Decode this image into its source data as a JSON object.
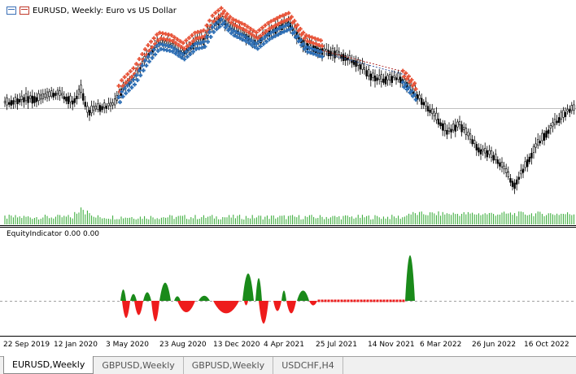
{
  "chart": {
    "symbol_title": "EURUSD, Weekly:  Euro vs US Dollar",
    "indicator_label": "EquityIndicator 0.00 0.00",
    "x_labels": [
      "22 Sep 2019",
      "12 Jan 2020",
      "3 May 2020",
      "23 Aug 2020",
      "13 Dec 2020",
      "4 Apr 2021",
      "25 Jul 2021",
      "14 Nov 2021",
      "6 Mar 2022",
      "26 Jun 2022",
      "16 Oct 2022"
    ],
    "colors": {
      "bull_marker": "#e8553a",
      "bear_marker": "#2e6fb5",
      "positive_fill": "#1a8a1a",
      "negative_fill": "#ee1c1c",
      "candles": "#000000",
      "volume": "#2fa82f"
    }
  },
  "tabs": [
    {
      "label": "EURUSD,Weekly",
      "active": true
    },
    {
      "label": "GBPUSD,Weekly",
      "active": false
    },
    {
      "label": "GBPUSD,Weekly",
      "active": false
    },
    {
      "label": "USDCHF,H4",
      "active": false
    }
  ]
}
